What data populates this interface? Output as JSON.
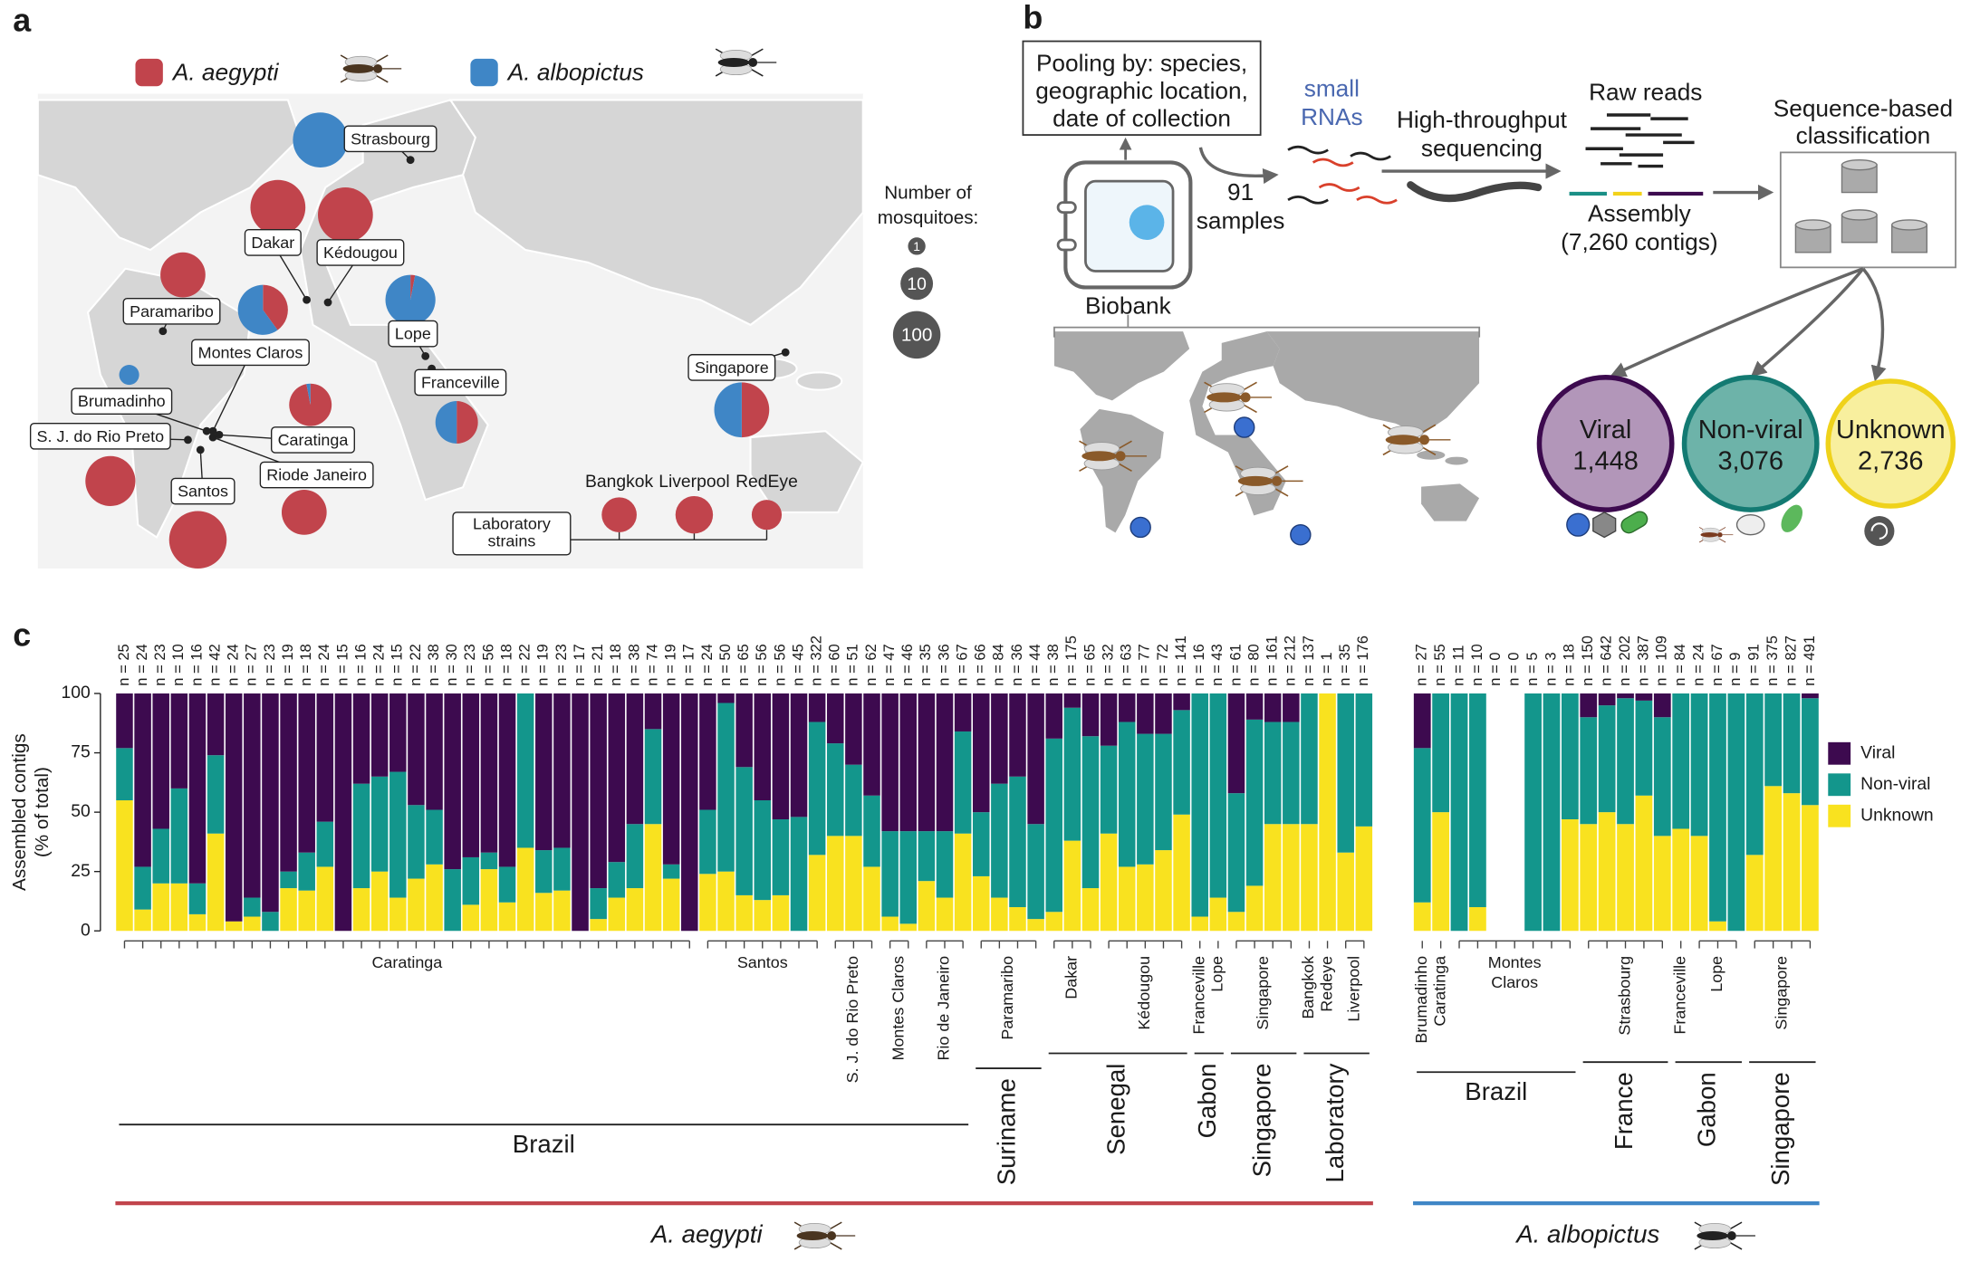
{
  "panel_labels": [
    "a",
    "b",
    "c"
  ],
  "map": {
    "legend": [
      {
        "name": "A. aegypti",
        "color": "#c1444c"
      },
      {
        "name": "A. albopictus",
        "color": "#3f86c6"
      }
    ],
    "size_legend": {
      "title": [
        "Number of",
        "mosquitoes:"
      ],
      "sizes": [
        1,
        10,
        100
      ]
    },
    "sites": [
      {
        "label": "Strasbourg",
        "values": [
          0,
          100
        ]
      },
      {
        "label": "Dakar",
        "values": [
          100,
          0
        ]
      },
      {
        "label": "Kédougou",
        "values": [
          100,
          0
        ]
      },
      {
        "label": "Paramaribo",
        "values": [
          100,
          0
        ]
      },
      {
        "label": "Montes Claros",
        "values": [
          40,
          60
        ]
      },
      {
        "label": "Lope",
        "values": [
          3,
          97
        ]
      },
      {
        "label": "Brumadinho",
        "values": [
          0,
          100
        ]
      },
      {
        "label": "Caratinga",
        "values": [
          97,
          3
        ]
      },
      {
        "label": "Franceville",
        "values": [
          50,
          50
        ]
      },
      {
        "label": "Singapore",
        "values": [
          50,
          50
        ]
      },
      {
        "label": "S. J. do Rio Preto",
        "values": [
          100,
          0
        ]
      },
      {
        "label": "Riode Janeiro",
        "values": [
          100,
          0
        ]
      },
      {
        "label": "Santos",
        "values": [
          100,
          0
        ]
      }
    ],
    "lab_strains": {
      "label": [
        "Laboratory",
        "strains"
      ],
      "sites": [
        {
          "label": "Bangkok",
          "values": [
            100,
            0
          ]
        },
        {
          "label": "Liverpool",
          "values": [
            100,
            0
          ]
        },
        {
          "label": "RedEye",
          "values": [
            100,
            0
          ]
        }
      ]
    }
  },
  "workflow": {
    "pooling": [
      "Pooling by: species,",
      "geographic location,",
      "date of collection"
    ],
    "small_rnas": [
      "small",
      "RNAs"
    ],
    "samples": [
      "91",
      "samples"
    ],
    "sequencing": [
      "High-throughput",
      "sequencing"
    ],
    "raw_reads": "Raw reads",
    "assembly": [
      "Assembly",
      "(7,260 contigs)"
    ],
    "classification": [
      "Sequence-based",
      "classification"
    ],
    "biobank": "Biobank",
    "classes": [
      {
        "name": "Viral",
        "count": "1,448",
        "fill": "#b296b9",
        "stroke": "#3d0a4f"
      },
      {
        "name": "Non-viral",
        "count": "3,076",
        "fill": "#6db3a9",
        "stroke": "#137a72"
      },
      {
        "name": "Unknown",
        "count": "2,736",
        "fill": "#f8ef9e",
        "stroke": "#efd21b"
      }
    ]
  },
  "chart_data": [
    {
      "type": "bar",
      "stacked": true,
      "categories": [
        "n = 25",
        "n = 24",
        "n = 23",
        "n = 10",
        "n = 16",
        "n = 42",
        "n = 24",
        "n = 27",
        "n = 23",
        "n = 19",
        "n = 18",
        "n = 24",
        "n = 15",
        "n = 16",
        "n = 24",
        "n = 15",
        "n = 22",
        "n = 38",
        "n = 30",
        "n = 23",
        "n = 56",
        "n = 18",
        "n = 22",
        "n = 19",
        "n = 23",
        "n = 17",
        "n = 21",
        "n = 18",
        "n = 38",
        "n = 74",
        "n = 19",
        "n = 17",
        "n = 24",
        "n = 50",
        "n = 65",
        "n = 56",
        "n = 56",
        "n = 45",
        "n = 322",
        "n = 60",
        "n = 51",
        "n = 62",
        "n = 47",
        "n = 46",
        "n = 35",
        "n = 36",
        "n = 67",
        "n = 66",
        "n = 84",
        "n = 36",
        "n = 44",
        "n = 38",
        "n = 175",
        "n = 65",
        "n = 32",
        "n = 63",
        "n = 77",
        "n = 72",
        "n = 141",
        "n = 16",
        "n = 43",
        "n = 61",
        "n = 80",
        "n = 161",
        "n = 212",
        "n = 137",
        "n = 1",
        "n = 35",
        "n = 176"
      ],
      "series": [
        {
          "name": "Viral",
          "color": "#3d0a4f",
          "values": [
            23,
            73,
            57,
            40,
            80,
            26,
            96,
            86,
            92,
            75,
            67,
            54,
            100,
            38,
            35,
            33,
            47,
            49,
            74,
            69,
            67,
            73,
            0,
            66,
            65,
            100,
            82,
            71,
            55,
            15,
            72,
            100,
            49,
            4,
            31,
            45,
            53,
            52,
            12,
            21,
            30,
            43,
            58,
            58,
            58,
            58,
            16,
            50,
            38,
            35,
            55,
            19,
            6,
            18,
            22,
            12,
            17,
            17,
            7,
            0,
            0,
            42,
            11,
            12,
            12,
            0,
            0,
            0,
            0
          ]
        },
        {
          "name": "Non-viral",
          "color": "#13968c",
          "values": [
            22,
            18,
            23,
            40,
            13,
            33,
            0,
            8,
            8,
            7,
            16,
            19,
            0,
            44,
            40,
            53,
            31,
            23,
            26,
            20,
            7,
            15,
            65,
            18,
            18,
            0,
            13,
            15,
            27,
            40,
            6,
            0,
            27,
            71,
            54,
            42,
            32,
            48,
            56,
            39,
            30,
            30,
            36,
            39,
            21,
            28,
            43,
            27,
            48,
            55,
            40,
            73,
            56,
            64,
            37,
            61,
            55,
            49,
            44,
            94,
            86,
            50,
            70,
            43,
            43,
            55,
            0,
            67,
            56
          ]
        },
        {
          "name": "Unknown",
          "color": "#f9e21f",
          "values": [
            55,
            9,
            20,
            20,
            7,
            41,
            4,
            6,
            0,
            18,
            17,
            27,
            0,
            18,
            25,
            14,
            22,
            28,
            0,
            11,
            26,
            12,
            35,
            16,
            17,
            0,
            5,
            14,
            18,
            45,
            22,
            0,
            24,
            25,
            15,
            13,
            15,
            0,
            32,
            40,
            40,
            27,
            6,
            3,
            21,
            14,
            41,
            23,
            14,
            10,
            5,
            8,
            38,
            18,
            41,
            27,
            28,
            34,
            49,
            6,
            14,
            8,
            19,
            45,
            45,
            45,
            100,
            33,
            44
          ]
        }
      ],
      "ylim": [
        0,
        100
      ],
      "yticks": [
        0,
        25,
        50,
        75,
        100
      ],
      "ylabel": [
        "Assembled contigs",
        "(% of total)"
      ],
      "locations": [
        "Caratinga",
        "Santos",
        "S. J. do Rio Preto",
        "Montes Claros",
        "Rio de Janeiro",
        "Paramaribo",
        "Dakar",
        "Kédougou",
        "Franceville",
        "Lope",
        "Singapore",
        "Bangkok",
        "Redeye",
        "Liverpool"
      ],
      "countries": [
        "Brazil",
        "Suriname",
        "Senegal",
        "Gabon",
        "Singapore",
        "Laboratory"
      ],
      "species": "A. aegypti",
      "species_color": "#c1444c"
    },
    {
      "type": "bar",
      "stacked": true,
      "categories": [
        "n = 27",
        "n = 55",
        "n = 11",
        "n = 10",
        "n = 0",
        "n = 0",
        "n = 5",
        "n = 3",
        "n = 18",
        "n = 150",
        "n = 642",
        "n = 202",
        "n = 387",
        "n = 109",
        "n = 84",
        "n = 24",
        "n = 67",
        "n = 9",
        "n = 91",
        "n = 375",
        "n = 827",
        "n = 491"
      ],
      "series": [
        {
          "color": "#3d0a4f",
          "values": [
            23,
            0,
            0,
            0,
            0,
            0,
            0,
            0,
            0,
            10,
            5,
            2,
            3,
            10,
            0,
            0,
            0,
            0,
            0,
            0,
            0,
            2
          ]
        },
        {
          "color": "#13968c",
          "values": [
            65,
            50,
            100,
            90,
            0,
            0,
            100,
            100,
            53,
            45,
            45,
            53,
            40,
            50,
            57,
            60,
            96,
            100,
            68,
            39,
            42,
            45
          ]
        },
        {
          "color": "#f9e21f",
          "values": [
            12,
            50,
            0,
            10,
            0,
            0,
            0,
            0,
            47,
            45,
            50,
            45,
            57,
            40,
            43,
            40,
            4,
            0,
            32,
            61,
            58,
            53
          ]
        }
      ],
      "locations": [
        "Brumadinho",
        "Caratinga",
        [
          "Montes",
          "Claros"
        ],
        "Strasbourg",
        "Franceville",
        "Lope",
        "Singapore"
      ],
      "countries": [
        "Brazil",
        "France",
        "Gabon",
        "Singapore"
      ],
      "species": "A. albopictus",
      "species_color": "#3f86c6"
    }
  ]
}
